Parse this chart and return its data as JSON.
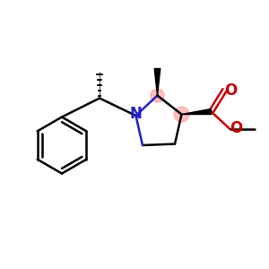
{
  "bg_color": "#ffffff",
  "bond_color": "#000000",
  "N_color": "#2222cc",
  "O_color": "#cc0000",
  "highlight_color": "#ff8080",
  "highlight_alpha": 0.5,
  "line_width": 1.8,
  "font_size_atom": 11,
  "figsize": [
    3.0,
    3.0
  ],
  "dpi": 100,
  "xlim": [
    0,
    10
  ],
  "ylim": [
    1,
    9
  ]
}
